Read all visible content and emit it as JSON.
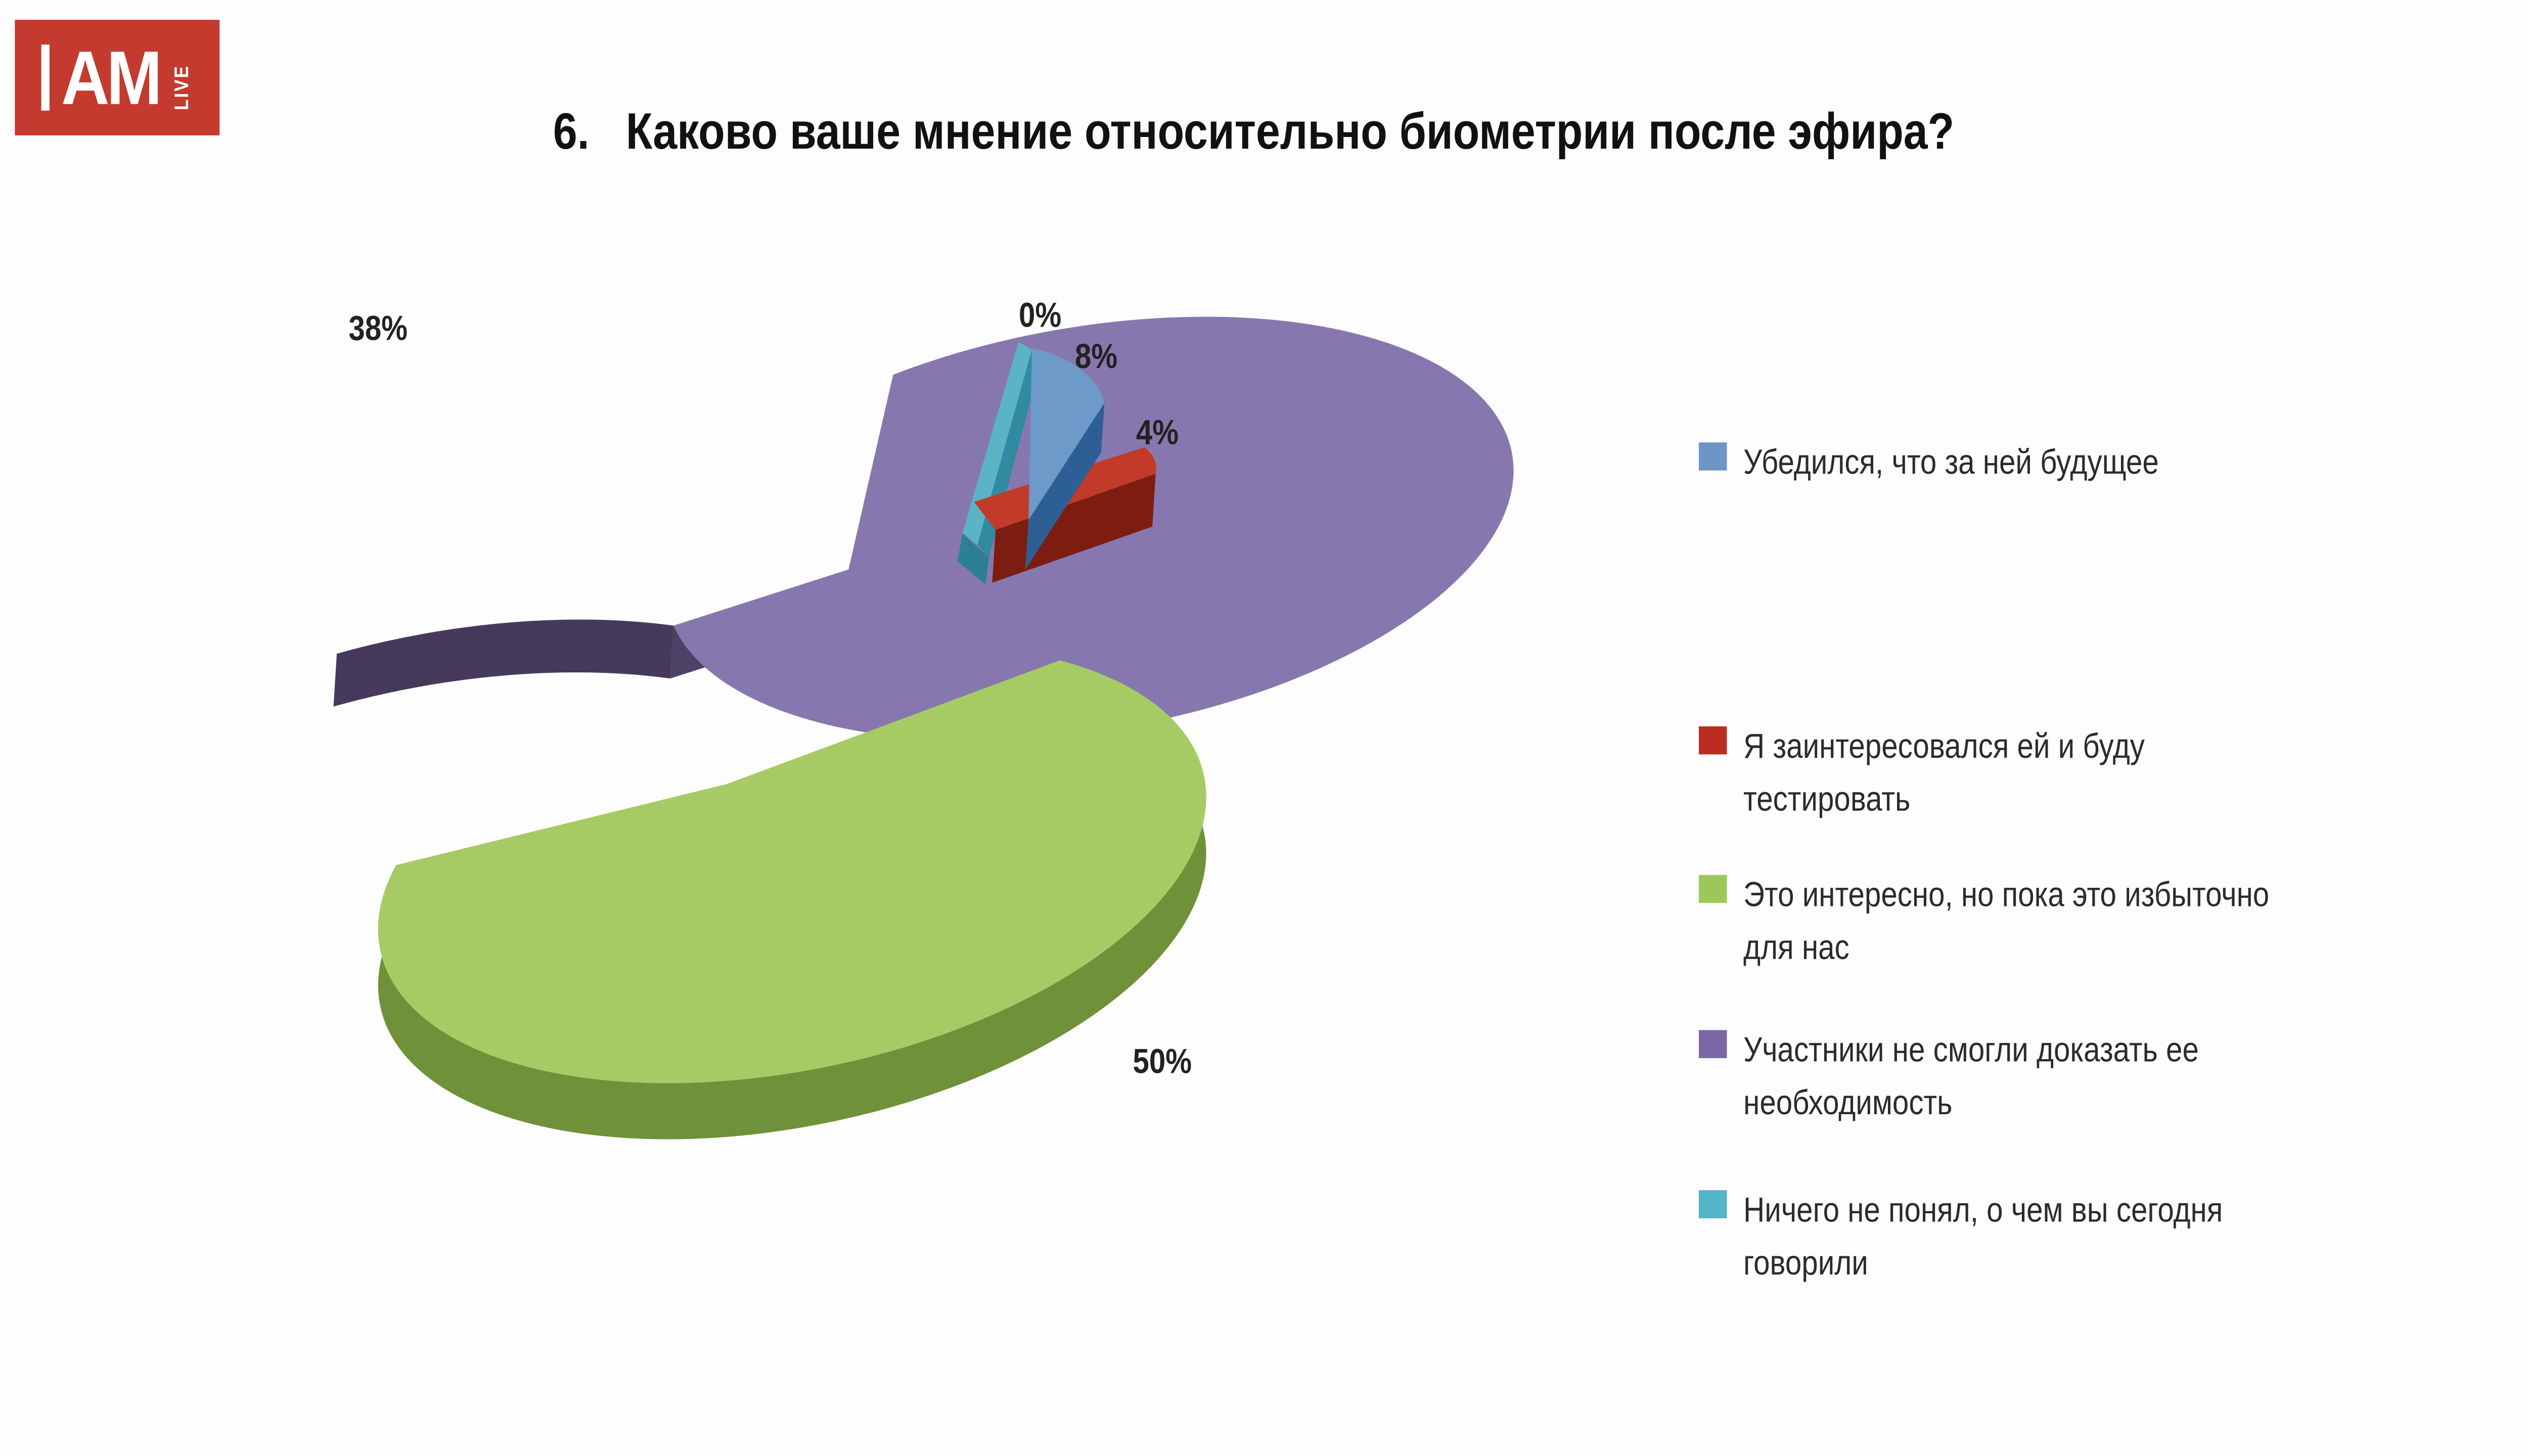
{
  "logo": {
    "main": "AM",
    "sub": "LIVE"
  },
  "title": {
    "number": "6.",
    "text": "Каково ваше мнение относительно биометрии после эфира?"
  },
  "chart_data": {
    "type": "pie",
    "style": "3d-exploded",
    "title": "Каково ваше мнение относительно биометрии после эфира?",
    "legend_position": "right",
    "slices": [
      {
        "label": "Убедился, что за ней  будущее",
        "value": 8,
        "pct_label": "8%",
        "color": "#6d95c5"
      },
      {
        "label": "Я заинтересовался ей и буду тестировать",
        "value": 4,
        "pct_label": "4%",
        "color": "#bb2d20"
      },
      {
        "label": "Это интересно, но пока это избыточно для нас",
        "value": 50,
        "pct_label": "50%",
        "color": "#9dc858"
      },
      {
        "label": "Участники не смогли доказать ее необходимость",
        "value": 38,
        "pct_label": "38%",
        "color": "#7c67a5"
      },
      {
        "label": "Ничего не понял, о чем вы сегодня говорили",
        "value": 0,
        "pct_label": "0%",
        "color": "#54b4c8"
      }
    ]
  },
  "legend": {
    "items": [
      {
        "line1": "Убедился, что за ней  будущее",
        "line2": ""
      },
      {
        "line1": "Я заинтересовался ей и буду",
        "line2": "тестировать"
      },
      {
        "line1": "Это интересно, но пока это избыточно",
        "line2": "для нас"
      },
      {
        "line1": "Участники не смогли доказать ее",
        "line2": "необходимость"
      },
      {
        "line1": "Ничего не понял, о чем вы сегодня",
        "line2": "говорили"
      }
    ]
  },
  "labels": {
    "p38": "38%",
    "p0": "0%",
    "p8": "8%",
    "p4": "4%",
    "p50": "50%"
  }
}
